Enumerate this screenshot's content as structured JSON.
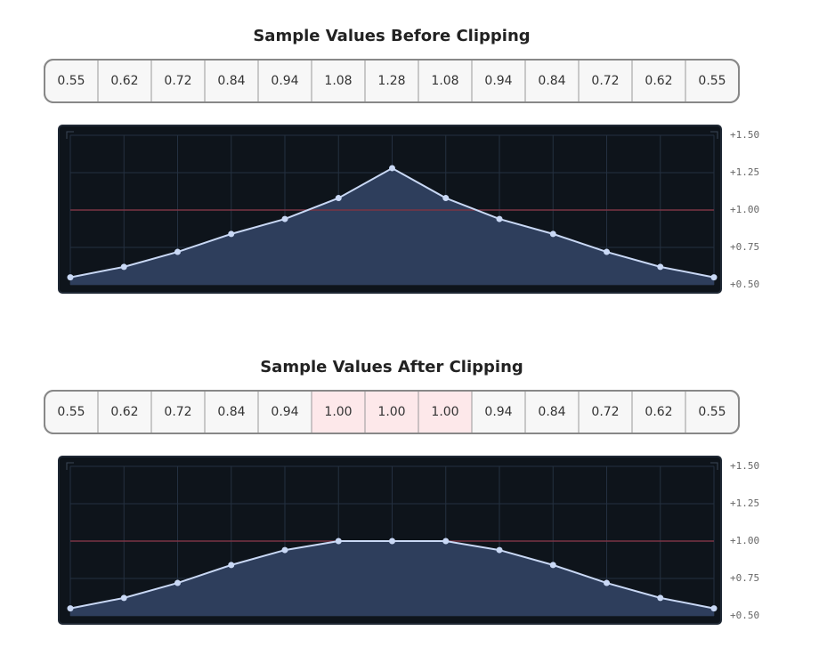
{
  "chart_data": [
    {
      "type": "area",
      "title": "Sample Values Before Clipping",
      "values": [
        0.55,
        0.62,
        0.72,
        0.84,
        0.94,
        1.08,
        1.28,
        1.08,
        0.94,
        0.84,
        0.72,
        0.62,
        0.55
      ],
      "ylim": [
        0.5,
        1.5
      ],
      "yticks": [
        {
          "value": 1.5,
          "label": "+1.50"
        },
        {
          "value": 1.25,
          "label": "+1.25"
        },
        {
          "value": 1.0,
          "label": "+1.00"
        },
        {
          "value": 0.75,
          "label": "+0.75"
        },
        {
          "value": 0.5,
          "label": "+0.50"
        }
      ],
      "threshold": 1.0,
      "threshold_color": "#7a3545",
      "highlight_at_threshold": false,
      "line_color": "#c9d8f5",
      "fill_color": "#2e3e5c",
      "grid": true
    },
    {
      "type": "area",
      "title": "Sample Values After Clipping",
      "values": [
        0.55,
        0.62,
        0.72,
        0.84,
        0.94,
        1.0,
        1.0,
        1.0,
        0.94,
        0.84,
        0.72,
        0.62,
        0.55
      ],
      "value_labels": [
        "0.55",
        "0.62",
        "0.72",
        "0.84",
        "0.94",
        "1.00",
        "1.00",
        "1.00",
        "0.94",
        "0.84",
        "0.72",
        "0.62",
        "0.55"
      ],
      "ylim": [
        0.5,
        1.5
      ],
      "yticks": [
        {
          "value": 1.5,
          "label": "+1.50"
        },
        {
          "value": 1.25,
          "label": "+1.25"
        },
        {
          "value": 1.0,
          "label": "+1.00"
        },
        {
          "value": 0.75,
          "label": "+0.75"
        },
        {
          "value": 0.5,
          "label": "+0.50"
        }
      ],
      "threshold": 1.0,
      "threshold_color": "#7a3545",
      "highlight_at_threshold": true,
      "highlight_color": "#fde8ea",
      "line_color": "#c9d8f5",
      "fill_color": "#2e3e5c",
      "grid": true
    }
  ]
}
